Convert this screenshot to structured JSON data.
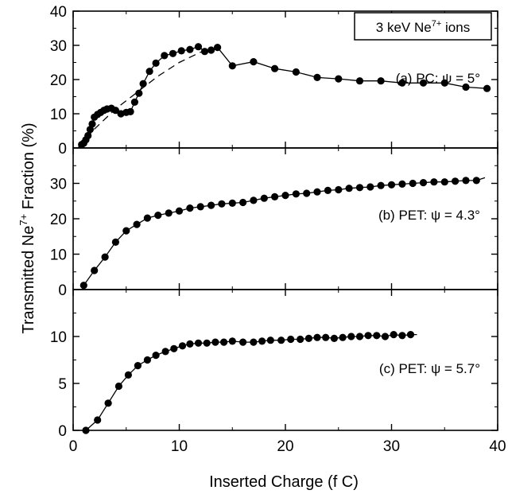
{
  "chart_data": {
    "type": "scatter",
    "xlabel": "Inserted Charge (f C)",
    "ylabel": "Transmitted Ne7+ Fraction (%)",
    "ylabel_parts": {
      "pre": "Transmitted Ne",
      "sup": "7+",
      "post": " Fraction (%)"
    },
    "xlim": [
      0,
      40
    ],
    "xticks": [
      0,
      10,
      20,
      30,
      40
    ],
    "box_label": {
      "pre": "3 keV Ne",
      "sup": "7+",
      "post": " ions"
    },
    "grid": false,
    "panels": [
      {
        "id": "a",
        "label": "(a)  PC:  ψ = 5°",
        "ylim": [
          0,
          40
        ],
        "yticks": [
          0,
          10,
          20,
          30,
          40
        ],
        "points": [
          [
            0.8,
            1.0
          ],
          [
            1.0,
            1.4
          ],
          [
            1.2,
            2.4
          ],
          [
            1.4,
            3.6
          ],
          [
            1.6,
            5.4
          ],
          [
            1.8,
            7.0
          ],
          [
            2.0,
            9.0
          ],
          [
            2.3,
            9.8
          ],
          [
            2.6,
            10.4
          ],
          [
            2.9,
            11.0
          ],
          [
            3.2,
            11.4
          ],
          [
            3.6,
            11.6
          ],
          [
            4.0,
            11.0
          ],
          [
            4.5,
            10.0
          ],
          [
            5.0,
            10.4
          ],
          [
            5.4,
            10.6
          ],
          [
            5.8,
            13.4
          ],
          [
            6.2,
            16.0
          ],
          [
            6.6,
            18.8
          ],
          [
            7.2,
            22.4
          ],
          [
            7.8,
            24.8
          ],
          [
            8.6,
            27.0
          ],
          [
            9.4,
            27.6
          ],
          [
            10.2,
            28.4
          ],
          [
            11.0,
            28.8
          ],
          [
            11.8,
            29.6
          ],
          [
            12.4,
            28.2
          ],
          [
            13.0,
            28.6
          ],
          [
            13.6,
            29.4
          ],
          [
            15.0,
            24.0
          ],
          [
            17.0,
            25.2
          ],
          [
            19.0,
            23.2
          ],
          [
            21.0,
            22.2
          ],
          [
            23.0,
            20.6
          ],
          [
            25.0,
            20.2
          ],
          [
            27.0,
            19.6
          ],
          [
            29.0,
            19.6
          ],
          [
            31.0,
            19.0
          ],
          [
            33.0,
            19.0
          ],
          [
            35.0,
            19.0
          ],
          [
            37.0,
            17.8
          ],
          [
            39.0,
            17.4
          ]
        ],
        "fit_dashed": [
          [
            0.5,
            0.2
          ],
          [
            2,
            5.5
          ],
          [
            4,
            11.4
          ],
          [
            6,
            16.2
          ],
          [
            8,
            21.0
          ],
          [
            10,
            25.0
          ],
          [
            12,
            28.0
          ],
          [
            13,
            28.4
          ]
        ]
      },
      {
        "id": "b",
        "label": "(b) PET: ψ = 4.3°",
        "ylim": [
          0,
          40
        ],
        "yticks": [
          0,
          10,
          20,
          30
        ],
        "points": [
          [
            1.0,
            1.2
          ],
          [
            2.0,
            5.4
          ],
          [
            3.0,
            9.2
          ],
          [
            4.0,
            13.4
          ],
          [
            5.0,
            16.6
          ],
          [
            6.0,
            18.4
          ],
          [
            7.0,
            20.2
          ],
          [
            8.0,
            21.0
          ],
          [
            9.0,
            21.6
          ],
          [
            10.0,
            22.2
          ],
          [
            11.0,
            23.0
          ],
          [
            12.0,
            23.4
          ],
          [
            13.0,
            23.8
          ],
          [
            14.0,
            24.2
          ],
          [
            15.0,
            24.4
          ],
          [
            16.0,
            24.6
          ],
          [
            17.0,
            25.2
          ],
          [
            18.0,
            25.8
          ],
          [
            19.0,
            26.2
          ],
          [
            20.0,
            26.6
          ],
          [
            21.0,
            27.0
          ],
          [
            22.0,
            27.2
          ],
          [
            23.0,
            27.6
          ],
          [
            24.0,
            28.0
          ],
          [
            25.0,
            28.2
          ],
          [
            26.0,
            28.6
          ],
          [
            27.0,
            28.8
          ],
          [
            28.0,
            29.0
          ],
          [
            29.0,
            29.4
          ],
          [
            30.0,
            29.6
          ],
          [
            31.0,
            29.8
          ],
          [
            32.0,
            30.0
          ],
          [
            33.0,
            30.2
          ],
          [
            34.0,
            30.4
          ],
          [
            35.0,
            30.4
          ],
          [
            36.0,
            30.6
          ],
          [
            37.0,
            30.8
          ],
          [
            38.0,
            30.8
          ]
        ],
        "line_end": [
          38.8,
          31.6
        ]
      },
      {
        "id": "c",
        "label": "(c) PET: ψ = 5.7°",
        "ylim": [
          0,
          15
        ],
        "yticks": [
          0,
          5,
          10
        ],
        "points": [
          [
            1.2,
            0.0
          ],
          [
            2.3,
            1.1
          ],
          [
            3.3,
            2.9
          ],
          [
            4.3,
            4.7
          ],
          [
            5.2,
            5.9
          ],
          [
            6.1,
            6.9
          ],
          [
            7.0,
            7.5
          ],
          [
            7.8,
            8.0
          ],
          [
            8.7,
            8.4
          ],
          [
            9.5,
            8.7
          ],
          [
            10.3,
            9.0
          ],
          [
            11.0,
            9.2
          ],
          [
            11.8,
            9.3
          ],
          [
            12.6,
            9.3
          ],
          [
            13.4,
            9.4
          ],
          [
            14.2,
            9.4
          ],
          [
            15.0,
            9.5
          ],
          [
            16.0,
            9.4
          ],
          [
            17.0,
            9.4
          ],
          [
            17.8,
            9.5
          ],
          [
            18.6,
            9.6
          ],
          [
            19.6,
            9.6
          ],
          [
            20.5,
            9.7
          ],
          [
            21.4,
            9.7
          ],
          [
            22.2,
            9.8
          ],
          [
            23.0,
            9.9
          ],
          [
            23.8,
            9.9
          ],
          [
            24.6,
            9.8
          ],
          [
            25.4,
            9.9
          ],
          [
            26.2,
            10.0
          ],
          [
            27.0,
            10.0
          ],
          [
            27.8,
            10.1
          ],
          [
            28.6,
            10.1
          ],
          [
            29.4,
            10.0
          ],
          [
            30.2,
            10.2
          ],
          [
            31.0,
            10.1
          ],
          [
            31.8,
            10.2
          ]
        ],
        "line_end": [
          32.4,
          10.2
        ]
      }
    ]
  }
}
